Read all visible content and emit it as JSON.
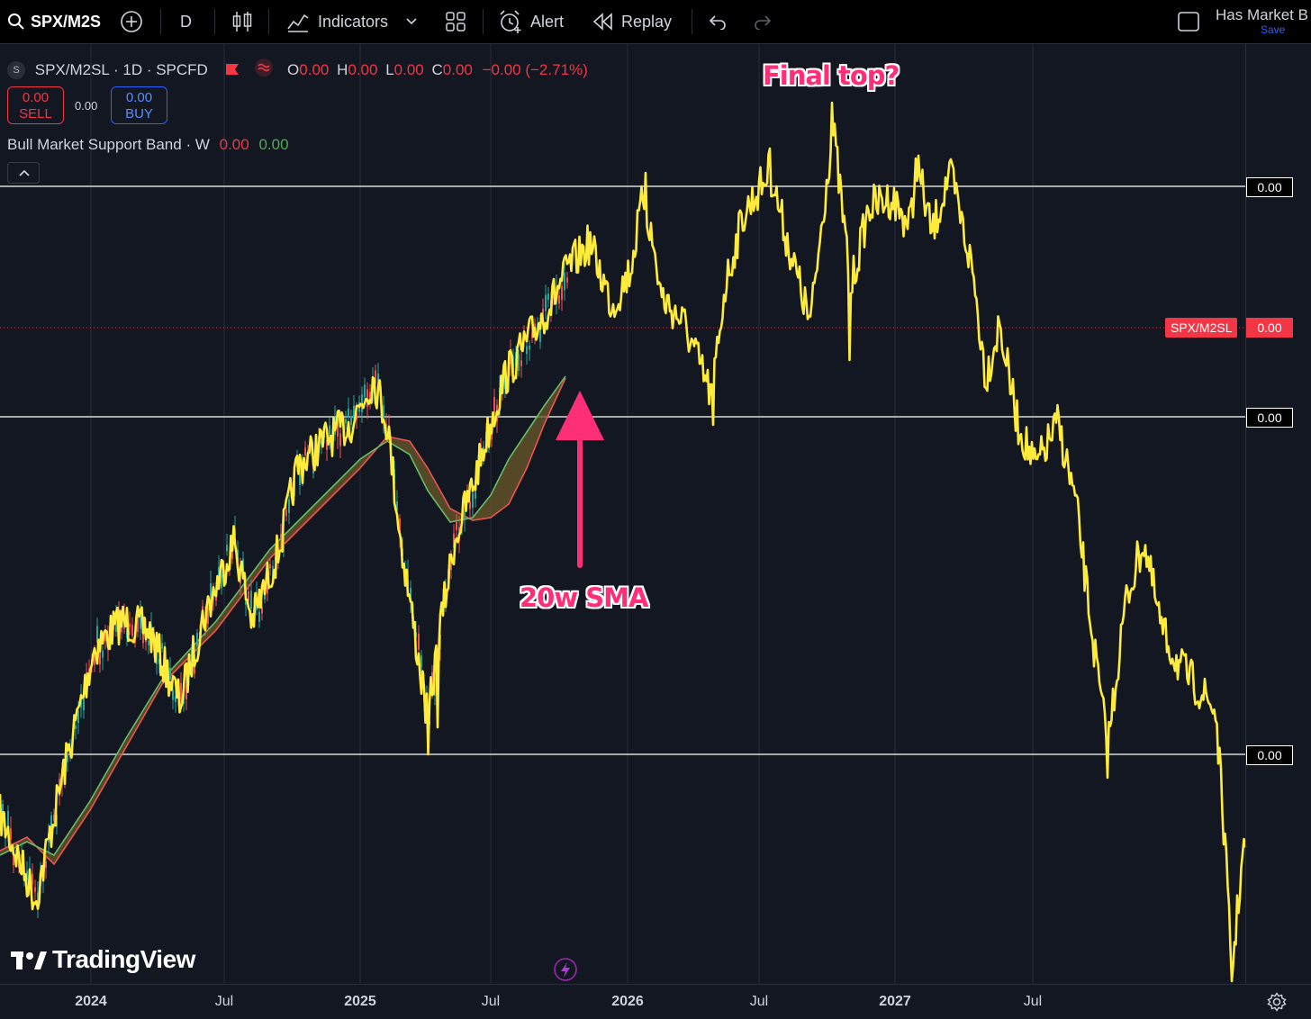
{
  "toolbar": {
    "symbol": "SPX/M2S",
    "interval": "D",
    "indicators_label": "Indicators",
    "alert_label": "Alert",
    "replay_label": "Replay",
    "layout_name": "Has Market B",
    "save_label": "Save"
  },
  "legend": {
    "title": "SPX/M2SL · 1D · SPCFD",
    "open_key": "O",
    "open": "0.00",
    "high_key": "H",
    "high": "0.00",
    "low_key": "L",
    "low": "0.00",
    "close_key": "C",
    "close": "0.00",
    "change": "−0.00 (−2.71%)",
    "sell_price": "0.00",
    "sell_label": "SELL",
    "spread": "0.00",
    "buy_price": "0.00",
    "buy_label": "BUY",
    "indicator_name": "Bull Market Support Band · W",
    "indicator_val1": "0.00",
    "indicator_val2": "0.00"
  },
  "price_axis": {
    "level_labels": [
      "0.00",
      "0.00",
      "0.00"
    ],
    "symbol_label": "SPX/M2SL",
    "symbol_price": "0.00"
  },
  "time_axis": {
    "labels": [
      "2024",
      "Jul",
      "2025",
      "Jul",
      "2026",
      "Jul",
      "2027",
      "Jul"
    ]
  },
  "annotations": {
    "final_top": "Final top?",
    "sma": "20w SMA"
  },
  "logo_text": "TradingView",
  "colors": {
    "background": "#131722",
    "projection_line": "#ffeb3b",
    "candle_up": "#26a69a",
    "candle_down": "#ef5350",
    "sma_band_fill": "#6b5a2a",
    "sma_line_1": "#ef5350",
    "sma_line_2": "#66bb6a",
    "annotation": "#ff2f77",
    "accent_red": "#f23645",
    "accent_blue": "#2962ff"
  }
}
